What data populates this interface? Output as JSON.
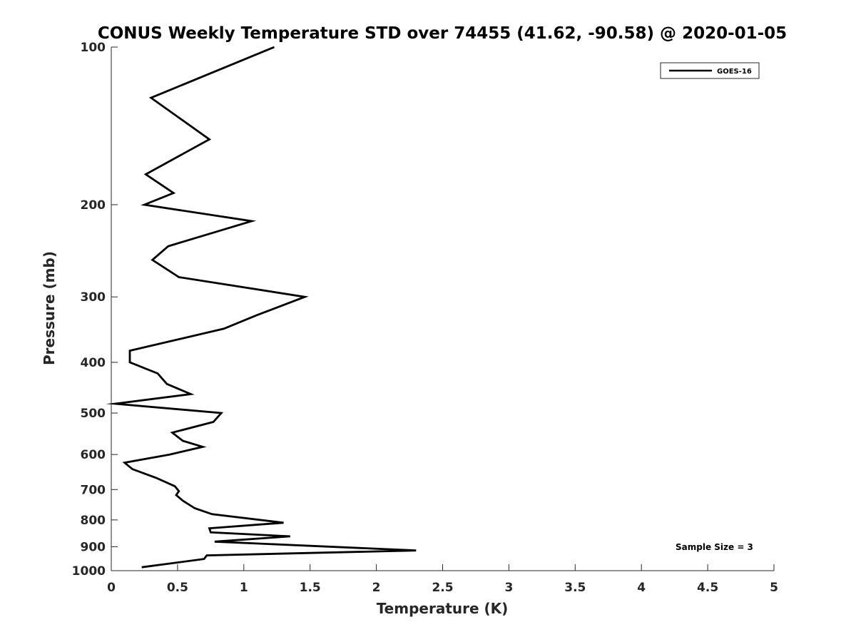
{
  "chart_data": {
    "type": "line",
    "title": "CONUS Weekly Temperature STD over 74455 (41.62, -90.58) @ 2020-01-05",
    "xlabel": "Temperature (K)",
    "ylabel": "Pressure (mb)",
    "xlim": [
      0,
      5
    ],
    "ylim": [
      100,
      1000
    ],
    "y_scale": "log",
    "y_reversed": true,
    "x_ticks": [
      0,
      0.5,
      1,
      1.5,
      2,
      2.5,
      3,
      3.5,
      4,
      4.5,
      5
    ],
    "x_tick_labels": [
      "0",
      "0.5",
      "1",
      "1.5",
      "2",
      "2.5",
      "3",
      "3.5",
      "4",
      "4.5",
      "5"
    ],
    "y_ticks": [
      100,
      200,
      300,
      400,
      500,
      600,
      700,
      800,
      900,
      1000
    ],
    "y_tick_labels": [
      "100",
      "200",
      "300",
      "400",
      "500",
      "600",
      "700",
      "800",
      "900",
      "1000"
    ],
    "grid": false,
    "legend_position": "top-right",
    "series": [
      {
        "name": "GOES-16",
        "color": "#000000",
        "points": [
          [
            1.23,
            100
          ],
          [
            0.3,
            125
          ],
          [
            0.74,
            150
          ],
          [
            0.26,
            175
          ],
          [
            0.47,
            190
          ],
          [
            0.25,
            200
          ],
          [
            1.06,
            215
          ],
          [
            0.43,
            240
          ],
          [
            0.31,
            255
          ],
          [
            0.51,
            275
          ],
          [
            1.46,
            300
          ],
          [
            1.1,
            325
          ],
          [
            0.85,
            345
          ],
          [
            0.14,
            380
          ],
          [
            0.14,
            400
          ],
          [
            0.35,
            420
          ],
          [
            0.42,
            440
          ],
          [
            0.6,
            460
          ],
          [
            0.03,
            480
          ],
          [
            0.83,
            500
          ],
          [
            0.77,
            520
          ],
          [
            0.46,
            545
          ],
          [
            0.54,
            565
          ],
          [
            0.69,
            580
          ],
          [
            0.44,
            600
          ],
          [
            0.1,
            622
          ],
          [
            0.16,
            640
          ],
          [
            0.34,
            665
          ],
          [
            0.48,
            690
          ],
          [
            0.51,
            705
          ],
          [
            0.49,
            717
          ],
          [
            0.54,
            735
          ],
          [
            0.63,
            760
          ],
          [
            0.76,
            780
          ],
          [
            1.3,
            810
          ],
          [
            0.74,
            830
          ],
          [
            0.75,
            845
          ],
          [
            1.35,
            860
          ],
          [
            0.78,
            880
          ],
          [
            2.3,
            915
          ],
          [
            0.72,
            935
          ],
          [
            0.7,
            950
          ],
          [
            0.23,
            985
          ]
        ]
      }
    ],
    "annotations": [
      {
        "text": "Sample Size = 3",
        "x": 4.3,
        "y": 900
      }
    ]
  }
}
